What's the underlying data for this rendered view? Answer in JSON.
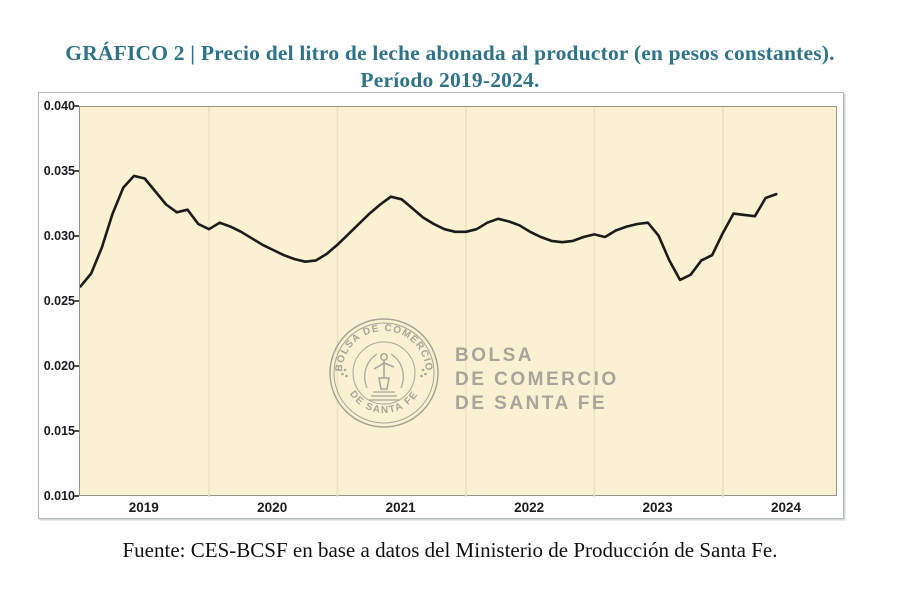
{
  "header": {
    "title_line1": "GRÁFICO 2 | Precio del litro de leche abonada al productor (en pesos constantes).",
    "title_line2": "Período 2019-2024.",
    "title_color": "#2f7389"
  },
  "chart_data": {
    "type": "line",
    "title": "Precio del litro de leche abonada al productor (en pesos constantes). Período 2019-2024.",
    "xlabel": "",
    "ylabel": "",
    "x_unit": "month",
    "x_start": "2019-01",
    "x_end": "2024-06",
    "x_tick_labels": [
      "2019",
      "2020",
      "2021",
      "2022",
      "2023",
      "2024"
    ],
    "y_tick_labels": [
      "0.040",
      "0.035",
      "0.030",
      "0.025",
      "0.020",
      "0.015",
      "0.010"
    ],
    "ylim": [
      0.01,
      0.04
    ],
    "grid": "vertical gridlines at January of 2020-2024, no horizontal gridlines",
    "legend": "none",
    "series": [
      {
        "name": "Precio del litro de leche (pesos constantes)",
        "values": [
          0.0262,
          0.0272,
          0.0292,
          0.0318,
          0.0338,
          0.0347,
          0.0345,
          0.0335,
          0.0325,
          0.0319,
          0.0321,
          0.031,
          0.0306,
          0.0311,
          0.0308,
          0.0304,
          0.0299,
          0.0294,
          0.029,
          0.0286,
          0.0283,
          0.0281,
          0.0282,
          0.0287,
          0.0294,
          0.0302,
          0.031,
          0.0318,
          0.0325,
          0.0331,
          0.0329,
          0.0322,
          0.0315,
          0.031,
          0.0306,
          0.0304,
          0.0304,
          0.0306,
          0.0311,
          0.0314,
          0.0312,
          0.0309,
          0.0304,
          0.03,
          0.0297,
          0.0296,
          0.0297,
          0.03,
          0.0302,
          0.03,
          0.0305,
          0.0308,
          0.031,
          0.0311,
          0.0301,
          0.0282,
          0.0267,
          0.0271,
          0.0282,
          0.0286,
          0.0303,
          0.0318,
          0.0317,
          0.0316,
          0.033,
          0.0333
        ]
      }
    ],
    "line_color": "#1b1b1b",
    "plot_bg_color": "#f9f1d2",
    "gridline_color": "#eae1bf"
  },
  "watermark": {
    "seal_text_top": "BOLSA DE COMERCIO",
    "seal_text_bottom": "DE SANTA FE",
    "line1": "BOLSA",
    "line2": "DE COMERCIO",
    "line3": "DE SANTA FE",
    "color": "#a8a49a"
  },
  "footer": {
    "source": "Fuente: CES-BCSF en base a datos del Ministerio de Producción de Santa Fe."
  }
}
